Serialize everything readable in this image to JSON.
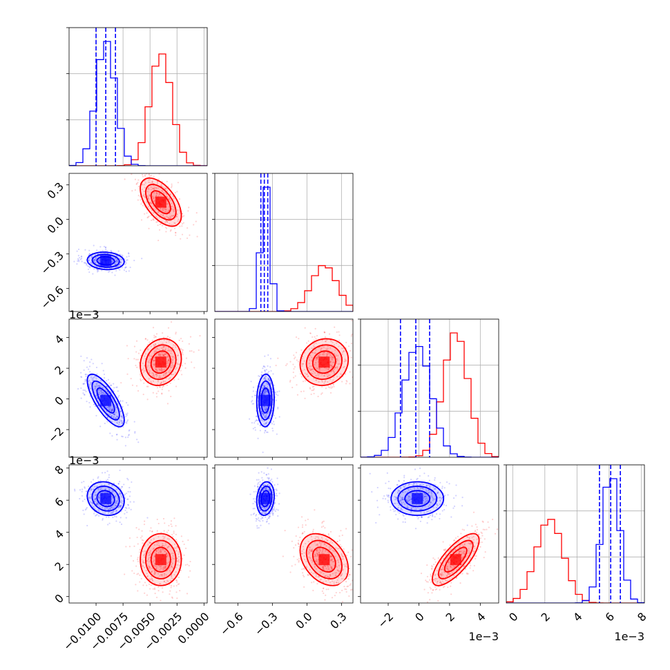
{
  "chart_data": {
    "type": "corner",
    "title": "",
    "legend": "none",
    "grid": true,
    "colors": {
      "blue": "#0000ff",
      "red": "#ff0000"
    },
    "params": [
      {
        "range": [
          -0.0125,
          0.0003
        ],
        "ticks": [
          -0.01,
          -0.0075,
          -0.005,
          -0.0025,
          0.0
        ],
        "tick_labels": [
          "−0.0100",
          "−0.0075",
          "−0.0050",
          "−0.0025",
          "0.0000"
        ],
        "offset_text": "",
        "blue": {
          "mean": -0.0091,
          "sd": 0.0009,
          "quantiles": [
            -0.01,
            -0.0091,
            -0.0082
          ]
        },
        "red": {
          "mean": -0.004,
          "sd": 0.001
        }
      },
      {
        "range": [
          -0.8,
          0.4
        ],
        "ticks": [
          -0.6,
          -0.3,
          0.0,
          0.3
        ],
        "tick_labels": [
          "−0.6",
          "−0.3",
          "0.0",
          "0.3"
        ],
        "offset_text": "",
        "blue": {
          "mean": -0.36,
          "sd": 0.04,
          "quantiles": [
            -0.4,
            -0.37,
            -0.34
          ]
        },
        "red": {
          "mean": 0.15,
          "sd": 0.11
        }
      },
      {
        "range": [
          -3.8,
          5.2
        ],
        "ticks": [
          -2,
          0,
          2,
          4
        ],
        "tick_labels": [
          "−2",
          "0",
          "2",
          "4"
        ],
        "offset_text": "1e−3",
        "blue": {
          "mean": -0.1,
          "sd": 0.9,
          "quantiles": [
            -1.2,
            -0.2,
            0.7
          ]
        },
        "red": {
          "mean": 2.4,
          "sd": 0.8
        }
      },
      {
        "range": [
          -0.4,
          8.2
        ],
        "ticks": [
          0,
          2,
          4,
          6,
          8
        ],
        "tick_labels": [
          "0",
          "2",
          "4",
          "6",
          "8"
        ],
        "offset_text": "1e−3",
        "blue": {
          "mean": 6.1,
          "sd": 0.55,
          "quantiles": [
            5.4,
            6.1,
            6.7
          ]
        },
        "red": {
          "mean": 2.3,
          "sd": 0.85
        }
      }
    ],
    "pairs": [
      {
        "row": 1,
        "col": 0,
        "blue_corr": -0.1,
        "red_corr": -0.55
      },
      {
        "row": 2,
        "col": 0,
        "blue_corr": -0.75,
        "red_corr": 0.15
      },
      {
        "row": 2,
        "col": 1,
        "blue_corr": 0.05,
        "red_corr": 0.1
      },
      {
        "row": 3,
        "col": 0,
        "blue_corr": -0.15,
        "red_corr": 0.0
      },
      {
        "row": 3,
        "col": 1,
        "blue_corr": 0.15,
        "red_corr": -0.35
      },
      {
        "row": 3,
        "col": 2,
        "blue_corr": 0.0,
        "red_corr": 0.75
      }
    ]
  }
}
